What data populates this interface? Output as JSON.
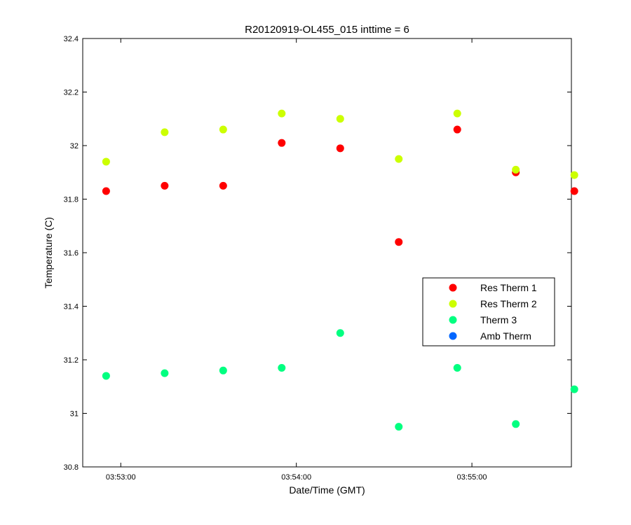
{
  "chart_data": {
    "type": "scatter",
    "title": "R20120919-OL455_015 inttime = 6",
    "xlabel": "Date/Time (GMT)",
    "ylabel": "Temperature (C)",
    "ylim": [
      30.8,
      32.4
    ],
    "xlim": [
      "03:52:47",
      "03:55:34"
    ],
    "grid": false,
    "legend_position": "right",
    "y_ticks": [
      "30.8",
      "31",
      "31.2",
      "31.4",
      "31.6",
      "31.8",
      "32",
      "32.2",
      "32.4"
    ],
    "x_ticks": [
      "03:53:00",
      "03:54:00",
      "03:55:00"
    ],
    "x": [
      "03:52:55",
      "03:53:15",
      "03:53:35",
      "03:53:55",
      "03:54:15",
      "03:54:35",
      "03:54:55",
      "03:55:15",
      "03:55:35"
    ],
    "series": [
      {
        "name": "Res Therm 1",
        "color": "#ff0000",
        "values": [
          31.83,
          31.85,
          31.85,
          32.01,
          31.99,
          31.64,
          32.06,
          31.9,
          31.83
        ]
      },
      {
        "name": "Res Therm 2",
        "color": "#ccff00",
        "values": [
          31.94,
          32.05,
          32.06,
          32.12,
          32.1,
          31.95,
          32.12,
          31.91,
          31.89
        ]
      },
      {
        "name": "Therm 3",
        "color": "#00ff80",
        "values": [
          31.14,
          31.15,
          31.16,
          31.17,
          31.3,
          30.95,
          31.17,
          30.96,
          31.09
        ]
      },
      {
        "name": "Amb Therm",
        "color": "#0066ff",
        "values": []
      }
    ]
  }
}
